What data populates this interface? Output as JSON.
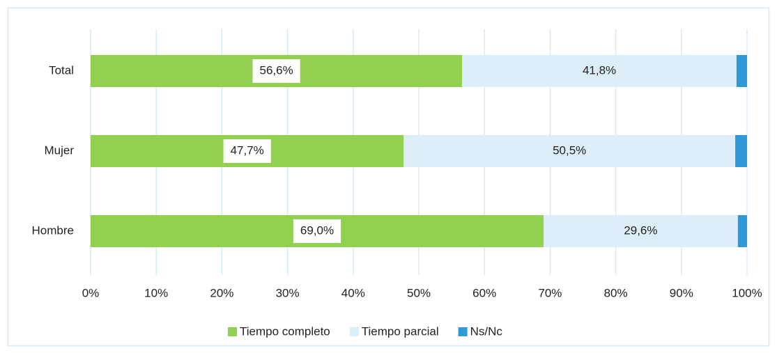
{
  "chart_data": {
    "type": "stacked-barh",
    "categories": [
      "Total",
      "Mujer",
      "Hombre"
    ],
    "series": [
      {
        "name": "Tiempo completo",
        "color": "#92d050",
        "values": [
          56.6,
          47.7,
          69.0
        ],
        "value_labels": [
          "56,6%",
          "47,7%",
          "69,0%"
        ]
      },
      {
        "name": "Tiempo parcial",
        "color": "#ddeef8",
        "values": [
          41.8,
          50.5,
          29.6
        ],
        "value_labels": [
          "41,8%",
          "50,5%",
          "29,6%"
        ]
      },
      {
        "name": "Ns/Nc",
        "color": "#2e9bd8",
        "values": [
          1.6,
          1.8,
          1.4
        ]
      }
    ],
    "xlim": [
      0,
      100
    ],
    "xticks": [
      {
        "value": 0,
        "label": "0%"
      },
      {
        "value": 10,
        "label": "10%"
      },
      {
        "value": 20,
        "label": "20%"
      },
      {
        "value": 30,
        "label": "30%"
      },
      {
        "value": 40,
        "label": "40%"
      },
      {
        "value": 50,
        "label": "50%"
      },
      {
        "value": 60,
        "label": "60%"
      },
      {
        "value": 70,
        "label": "70%"
      },
      {
        "value": 80,
        "label": "80%"
      },
      {
        "value": 90,
        "label": "90%"
      },
      {
        "value": 100,
        "label": "100%"
      }
    ],
    "grid": true,
    "legend": "bottom"
  }
}
